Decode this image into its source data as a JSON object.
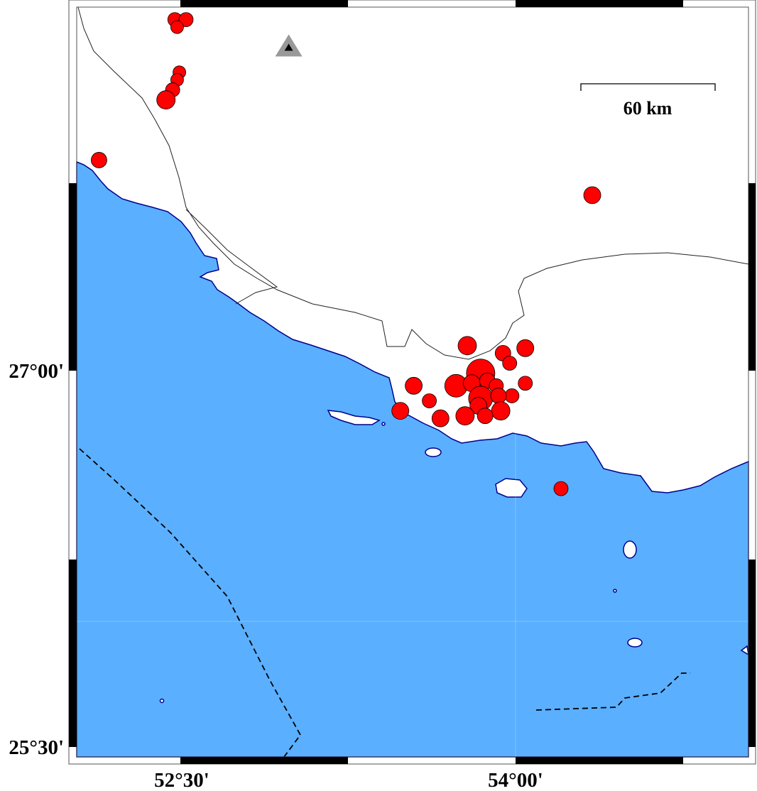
{
  "map": {
    "extent": {
      "lon_min": 52.03,
      "lon_max": 55.04,
      "lat_min": 25.46,
      "lat_max": 28.45
    },
    "colors": {
      "sea": "#5aafff",
      "land": "#ffffff",
      "coast": "#00008b",
      "event": "#ff0000",
      "station": "#999999"
    },
    "tick_labels": {
      "lat": [
        {
          "value": 27.0,
          "text": "27°00'"
        },
        {
          "value": 25.5,
          "text": "25°30'"
        }
      ],
      "lon": [
        {
          "value": 52.5,
          "text": "52°30'"
        },
        {
          "value": 54.0,
          "text": "54°00'"
        }
      ]
    },
    "scale_bar": {
      "label": "60 km"
    },
    "station": {
      "lon": 52.98,
      "lat": 28.29,
      "icon": "triangle-icon"
    },
    "events": [
      {
        "lon": 52.47,
        "lat": 28.4,
        "size": 1.0
      },
      {
        "lon": 52.52,
        "lat": 28.4,
        "size": 1.0
      },
      {
        "lon": 52.48,
        "lat": 28.37,
        "size": 0.9
      },
      {
        "lon": 52.49,
        "lat": 28.19,
        "size": 0.9
      },
      {
        "lon": 52.48,
        "lat": 28.16,
        "size": 0.9
      },
      {
        "lon": 52.46,
        "lat": 28.12,
        "size": 1.0
      },
      {
        "lon": 52.43,
        "lat": 28.08,
        "size": 1.3
      },
      {
        "lon": 52.13,
        "lat": 27.84,
        "size": 1.1
      },
      {
        "lon": 54.34,
        "lat": 27.7,
        "size": 1.2
      },
      {
        "lon": 53.78,
        "lat": 27.1,
        "size": 1.3
      },
      {
        "lon": 54.04,
        "lat": 27.09,
        "size": 1.2
      },
      {
        "lon": 53.94,
        "lat": 27.07,
        "size": 1.1
      },
      {
        "lon": 53.97,
        "lat": 27.03,
        "size": 1.0
      },
      {
        "lon": 53.84,
        "lat": 26.99,
        "size": 2.0
      },
      {
        "lon": 53.54,
        "lat": 26.94,
        "size": 1.2
      },
      {
        "lon": 53.73,
        "lat": 26.94,
        "size": 1.6
      },
      {
        "lon": 53.8,
        "lat": 26.95,
        "size": 1.2
      },
      {
        "lon": 53.87,
        "lat": 26.96,
        "size": 1.1
      },
      {
        "lon": 53.91,
        "lat": 26.94,
        "size": 1.0
      },
      {
        "lon": 54.04,
        "lat": 26.95,
        "size": 1.0
      },
      {
        "lon": 53.84,
        "lat": 26.89,
        "size": 1.7
      },
      {
        "lon": 53.61,
        "lat": 26.88,
        "size": 1.0
      },
      {
        "lon": 53.98,
        "lat": 26.9,
        "size": 1.0
      },
      {
        "lon": 53.92,
        "lat": 26.9,
        "size": 1.1
      },
      {
        "lon": 53.93,
        "lat": 26.84,
        "size": 1.3
      },
      {
        "lon": 53.83,
        "lat": 26.86,
        "size": 1.2
      },
      {
        "lon": 53.48,
        "lat": 26.84,
        "size": 1.2
      },
      {
        "lon": 53.66,
        "lat": 26.81,
        "size": 1.2
      },
      {
        "lon": 53.77,
        "lat": 26.82,
        "size": 1.3
      },
      {
        "lon": 53.86,
        "lat": 26.82,
        "size": 1.1
      },
      {
        "lon": 54.2,
        "lat": 26.53,
        "size": 1.0
      }
    ]
  }
}
